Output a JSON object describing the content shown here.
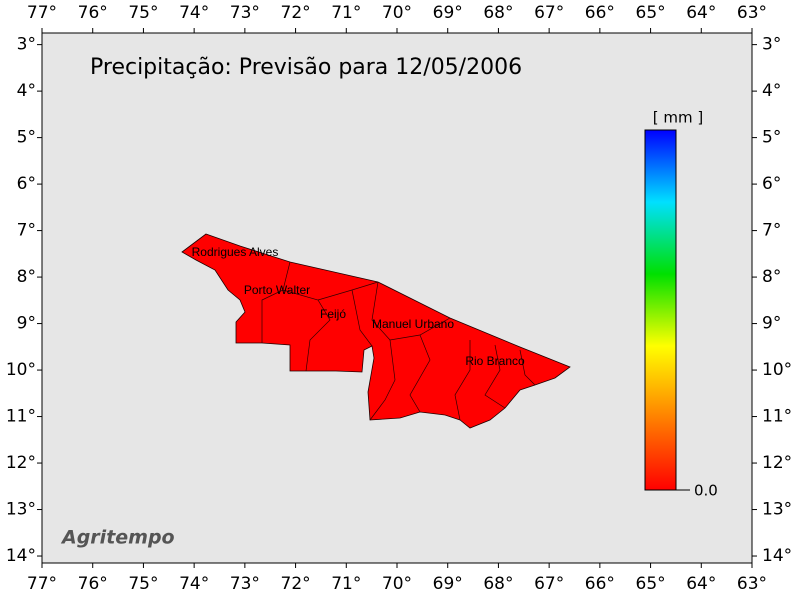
{
  "map": {
    "title": "Precipitação: Previsão para 12/05/2006",
    "lonlim": [
      -77,
      -63
    ],
    "latlim": [
      -14.15,
      -2.75
    ],
    "lon_ticks": [
      {
        "value": -77,
        "label": "77°"
      },
      {
        "value": -76,
        "label": "76°"
      },
      {
        "value": -75,
        "label": "75°"
      },
      {
        "value": -74,
        "label": "74°"
      },
      {
        "value": -73,
        "label": "73°"
      },
      {
        "value": -72,
        "label": "72°"
      },
      {
        "value": -71,
        "label": "71°"
      },
      {
        "value": -70,
        "label": "70°"
      },
      {
        "value": -69,
        "label": "69°"
      },
      {
        "value": -68,
        "label": "68°"
      },
      {
        "value": -67,
        "label": "67°"
      },
      {
        "value": -66,
        "label": "66°"
      },
      {
        "value": -65,
        "label": "65°"
      },
      {
        "value": -64,
        "label": "64°"
      },
      {
        "value": -63,
        "label": "63°"
      }
    ],
    "lat_ticks": [
      {
        "value": -3,
        "label": "3°"
      },
      {
        "value": -4,
        "label": "4°"
      },
      {
        "value": -5,
        "label": "5°"
      },
      {
        "value": -6,
        "label": "6°"
      },
      {
        "value": -7,
        "label": "7°"
      },
      {
        "value": -8,
        "label": "8°"
      },
      {
        "value": -9,
        "label": "9°"
      },
      {
        "value": -10,
        "label": "10°"
      },
      {
        "value": -11,
        "label": "11°"
      },
      {
        "value": -12,
        "label": "12°"
      },
      {
        "value": -13,
        "label": "13°"
      },
      {
        "value": -14,
        "label": "14°"
      }
    ],
    "cities": [
      "Rodrigues Alves",
      "Porto Walter",
      "Feijó",
      "Manuel Urbano",
      "Rio Branco"
    ],
    "colorbar": {
      "unit": "[ mm ]",
      "min_label": "0.0"
    },
    "credit": "Agritempo"
  }
}
